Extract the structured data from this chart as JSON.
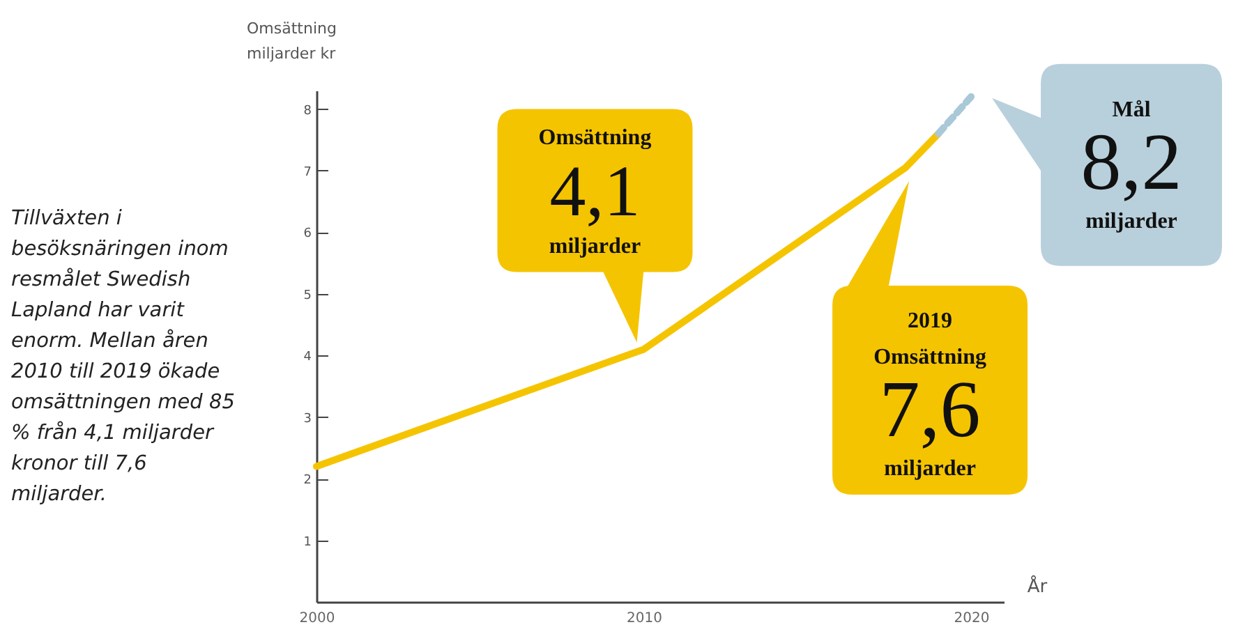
{
  "chart_data": {
    "type": "line",
    "xlabel": "År",
    "ylabel": "Omsättning miljarder kr",
    "xlim": [
      2000,
      2021
    ],
    "ylim": [
      0,
      8.3
    ],
    "xticks": [
      2000,
      2010,
      2020
    ],
    "yticks": [
      1,
      2,
      3,
      4,
      5,
      6,
      7,
      8
    ],
    "grid": false,
    "marker": "none",
    "series": [
      {
        "color": "#f5c400",
        "line_style": "solid",
        "x": [
          2000,
          2010,
          2018,
          2019
        ],
        "values": [
          2.2,
          4.1,
          7.05,
          7.6
        ]
      },
      {
        "color": "#a9c8d8",
        "line_style": "dashed",
        "x": [
          2019,
          2020
        ],
        "values": [
          7.6,
          8.2
        ]
      }
    ],
    "annotations": [
      "Tillväxten i besöksnäringen inom resmålet Swedish Lapland har varit enorm. Mellan åren 2010 till 2019 ökade omsättningen med 85 % från 4,1 miljarder kronor till 7,6 miljarder.",
      {
        "text": "Omsättning 4,1 miljarder",
        "x": 2010,
        "y": 4.1
      },
      {
        "text": "2019 Omsättning 7,6 miljarder",
        "x": 2019,
        "y": 7.6
      },
      {
        "text": "Mål 8,2 miljarder",
        "x": 2020,
        "y": 8.2
      }
    ]
  }
}
